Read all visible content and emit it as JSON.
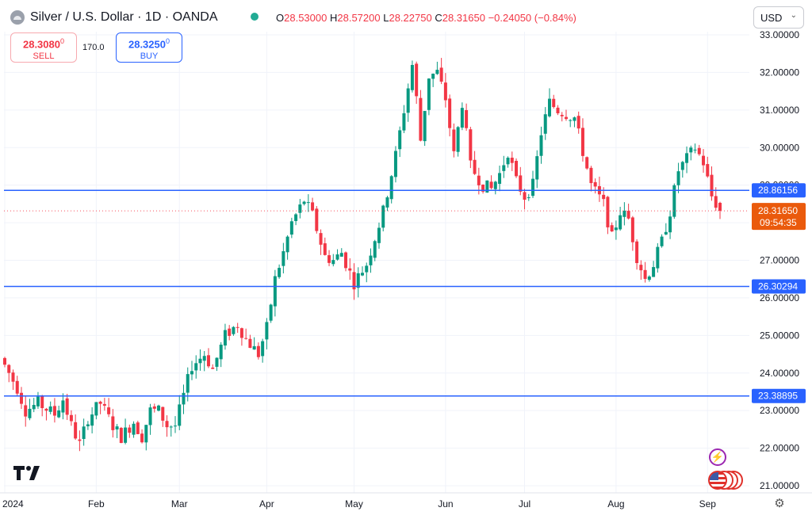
{
  "header": {
    "title": "Silver / U.S. Dollar · 1D · OANDA",
    "ohlc": {
      "o_label": "O",
      "o_value": "28.53000",
      "h_label": "H",
      "h_value": "28.57200",
      "l_label": "L",
      "l_value": "28.22750",
      "c_label": "C",
      "c_value": "28.31650",
      "change": "−0.24050 (−0.84%)"
    },
    "currency": "USD"
  },
  "trade": {
    "sell_price": "28.3080",
    "sell_price_sup": "0",
    "sell_label": "SELL",
    "spread": "170.0",
    "buy_price": "28.3250",
    "buy_price_sup": "0",
    "buy_label": "BUY"
  },
  "colors": {
    "up": "#089981",
    "down": "#f23645",
    "level_line": "#2962ff",
    "last_price": "#f7525f"
  },
  "icons": [
    "symbol-icon",
    "market-open-dot-icon",
    "chevron-down-icon",
    "tradingview-logo-icon",
    "flash-icon",
    "us-flag-icon",
    "gear-icon"
  ],
  "chart_data": {
    "type": "candlestick",
    "y_ticks": [
      "21.00000",
      "22.00000",
      "23.00000",
      "24.00000",
      "25.00000",
      "26.00000",
      "27.00000",
      "28.00000",
      "29.00000",
      "30.00000",
      "31.00000",
      "32.00000",
      "33.00000"
    ],
    "ylim": [
      20.7,
      33.1
    ],
    "x_ticks": [
      {
        "label": "2024",
        "index": 0
      },
      {
        "label": "Feb",
        "index": 22
      },
      {
        "label": "Mar",
        "index": 42
      },
      {
        "label": "Apr",
        "index": 63
      },
      {
        "label": "May",
        "index": 84
      },
      {
        "label": "Jun",
        "index": 106
      },
      {
        "label": "Jul",
        "index": 125
      },
      {
        "label": "Aug",
        "index": 147
      },
      {
        "label": "Sep",
        "index": 169
      }
    ],
    "levels": [
      {
        "value": 28.86156,
        "label": "28.86156"
      },
      {
        "value": 26.30294,
        "label": "26.30294"
      },
      {
        "value": 23.38895,
        "label": "23.38895"
      }
    ],
    "last_price": {
      "value": 28.3165,
      "label": "28.31650",
      "countdown": "09:54:35"
    },
    "waypoints": [
      [
        0,
        24.2
      ],
      [
        3,
        23.6
      ],
      [
        5,
        23.0
      ],
      [
        8,
        23.2
      ],
      [
        12,
        22.9
      ],
      [
        14,
        23.3
      ],
      [
        16,
        22.6
      ],
      [
        18,
        22.1
      ],
      [
        20,
        22.8
      ],
      [
        23,
        23.2
      ],
      [
        26,
        22.6
      ],
      [
        28,
        22.3
      ],
      [
        31,
        22.7
      ],
      [
        33,
        22.3
      ],
      [
        35,
        23.0
      ],
      [
        37,
        23.0
      ],
      [
        39,
        22.6
      ],
      [
        41,
        22.6
      ],
      [
        43,
        23.4
      ],
      [
        45,
        24.2
      ],
      [
        48,
        24.5
      ],
      [
        50,
        24.1
      ],
      [
        53,
        25.0
      ],
      [
        56,
        25.3
      ],
      [
        58,
        24.9
      ],
      [
        61,
        24.5
      ],
      [
        63,
        25.2
      ],
      [
        65,
        26.5
      ],
      [
        67,
        27.2
      ],
      [
        69,
        28.0
      ],
      [
        72,
        28.6
      ],
      [
        74,
        28.2
      ],
      [
        77,
        27.1
      ],
      [
        79,
        27.0
      ],
      [
        81,
        27.2
      ],
      [
        84,
        26.4
      ],
      [
        87,
        26.9
      ],
      [
        89,
        27.6
      ],
      [
        91,
        28.3
      ],
      [
        94,
        29.8
      ],
      [
        96,
        31.0
      ],
      [
        98,
        32.2
      ],
      [
        99,
        31.3
      ],
      [
        100,
        30.2
      ],
      [
        102,
        31.9
      ],
      [
        104,
        32.0
      ],
      [
        106,
        31.3
      ],
      [
        108,
        29.8
      ],
      [
        110,
        31.2
      ],
      [
        112,
        29.5
      ],
      [
        115,
        29.0
      ],
      [
        117,
        28.9
      ],
      [
        119,
        29.3
      ],
      [
        121,
        29.9
      ],
      [
        123,
        29.1
      ],
      [
        125,
        28.7
      ],
      [
        127,
        29.0
      ],
      [
        129,
        30.4
      ],
      [
        131,
        31.2
      ],
      [
        133,
        31.0
      ],
      [
        135,
        30.9
      ],
      [
        137,
        30.8
      ],
      [
        139,
        29.9
      ],
      [
        141,
        29.0
      ],
      [
        144,
        28.5
      ],
      [
        146,
        27.6
      ],
      [
        148,
        28.3
      ],
      [
        150,
        28.1
      ],
      [
        152,
        27.1
      ],
      [
        154,
        26.5
      ],
      [
        156,
        26.9
      ],
      [
        158,
        27.5
      ],
      [
        160,
        28.3
      ],
      [
        162,
        29.4
      ],
      [
        164,
        29.7
      ],
      [
        166,
        30.0
      ],
      [
        168,
        29.6
      ],
      [
        170,
        28.7
      ],
      [
        172,
        28.32
      ]
    ]
  }
}
